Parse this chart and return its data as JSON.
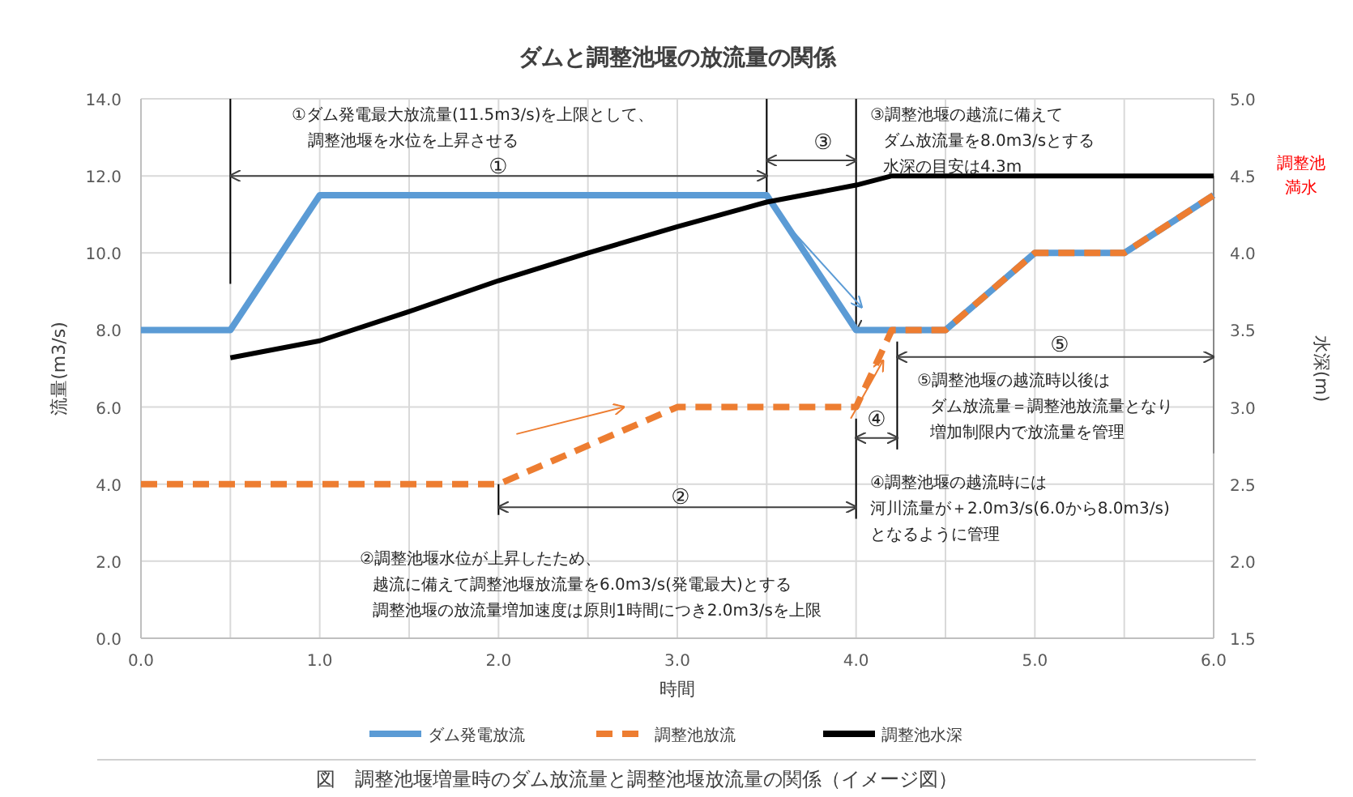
{
  "chart_data": {
    "type": "line",
    "title": "ダムと調整池堰の放流量の関係",
    "xlabel": "時間",
    "ylabel": "流量(m3/s)",
    "y2label": "水深(m)",
    "xlim": [
      0,
      6
    ],
    "ylim": [
      0,
      14
    ],
    "y2lim": [
      1.5,
      5.0
    ],
    "xticks": [
      {
        "value": 0,
        "label": "0.0"
      },
      {
        "value": 0.5,
        "label": null
      },
      {
        "value": 1,
        "label": "1.0"
      },
      {
        "value": 1.5,
        "label": null
      },
      {
        "value": 2,
        "label": "2.0"
      },
      {
        "value": 2.5,
        "label": null
      },
      {
        "value": 3,
        "label": "3.0"
      },
      {
        "value": 3.5,
        "label": null
      },
      {
        "value": 4,
        "label": "4.0"
      },
      {
        "value": 4.5,
        "label": null
      },
      {
        "value": 5,
        "label": "5.0"
      },
      {
        "value": 5.5,
        "label": null
      },
      {
        "value": 6,
        "label": "6.0"
      }
    ],
    "yticks": [
      {
        "value": 0,
        "label": "0.0"
      },
      {
        "value": 2,
        "label": "2.0"
      },
      {
        "value": 4,
        "label": "4.0"
      },
      {
        "value": 6,
        "label": "6.0"
      },
      {
        "value": 8,
        "label": "8.0"
      },
      {
        "value": 10,
        "label": "10.0"
      },
      {
        "value": 12,
        "label": "12.0"
      },
      {
        "value": 14,
        "label": "14.0"
      }
    ],
    "y2ticks": [
      {
        "value": 1.5,
        "label": "1.5"
      },
      {
        "value": 2,
        "label": "2.0"
      },
      {
        "value": 2.5,
        "label": "2.5"
      },
      {
        "value": 3,
        "label": "3.0"
      },
      {
        "value": 3.5,
        "label": "3.5"
      },
      {
        "value": 4,
        "label": "4.0"
      },
      {
        "value": 4.5,
        "label": "4.5"
      },
      {
        "value": 5,
        "label": "5.0"
      }
    ],
    "grid": true,
    "legend": "bottom",
    "series": [
      {
        "name": "ダム発電放流",
        "color": "#5b9bd5",
        "line_style": "solid",
        "x": [
          0,
          0.5,
          1.0,
          3.5,
          4.0,
          4.5,
          5.0,
          5.5,
          6.0
        ],
        "values": [
          8,
          8,
          11.5,
          11.5,
          8,
          8,
          10,
          10,
          11.5
        ]
      },
      {
        "name": "調整池放流",
        "color": "#ed7d31",
        "line_style": "dashed",
        "x": [
          0,
          2.0,
          3.0,
          4.0,
          4.2,
          4.5,
          5.0,
          5.5,
          6.0
        ],
        "values": [
          4,
          4,
          6,
          6,
          8,
          8,
          10,
          10,
          11.5
        ]
      },
      {
        "name": "調整池水深",
        "color": "#000000",
        "line_style": "solid",
        "axis": "y2",
        "x": [
          0.5,
          1.0,
          1.5,
          2.0,
          2.5,
          3.0,
          3.5,
          4.0,
          4.2,
          6.0
        ],
        "values": [
          3.32,
          3.43,
          3.62,
          3.82,
          4.0,
          4.17,
          4.33,
          4.44,
          4.5,
          4.5
        ]
      }
    ],
    "annotations": [
      "①ダム発電最大放流量(11.5m3/s)を上限として、",
      "調整池堰を水位を上昇させる",
      "①",
      "③",
      {
        "text": "③調整池堰の越流に備えて",
        "x": 4.0,
        "y": 8.0
      },
      "ダム放流量を8.0m3/sとする",
      "水深の目安は4.3m",
      "調整池",
      "満水",
      "⑤",
      "⑤調整池堰の越流時以後は",
      "ダム放流量＝調整池放流量となり",
      "増加制限内で放流量を管理",
      {
        "text": "④",
        "x": 4.15,
        "y": 7.2
      },
      "②",
      "④調整池堰の越流時には",
      "河川流量が＋2.0m3/s(6.0から8.0m3/s)",
      "となるように管理",
      "②調整池堰水位が上昇したため、",
      "越流に備えて調整池堰放流量を6.0m3/s(発電最大)とする",
      "調整池堰の放流量増加速度は原則1時間につき2.0m3/sを上限",
      "図　調整池堰増量時のダム放流量と調整池堰放流量の関係（イメージ図）"
    ]
  }
}
